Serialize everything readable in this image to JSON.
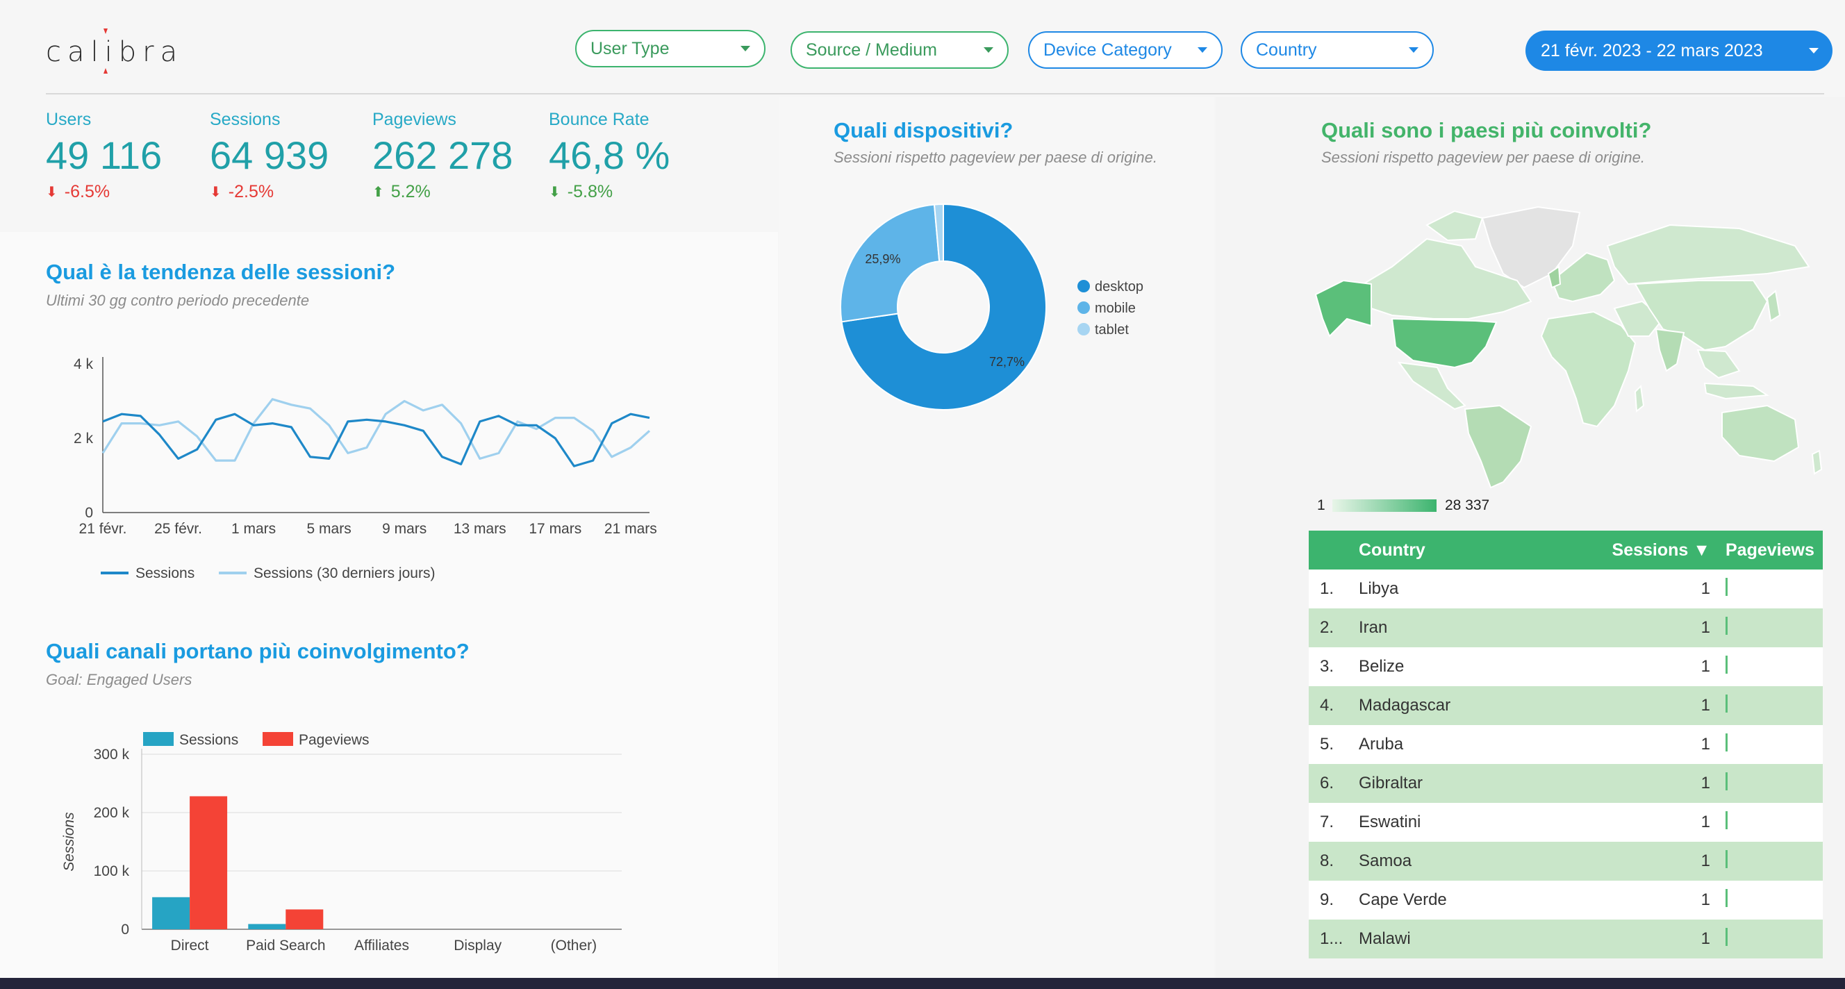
{
  "header": {
    "logo_text": "calibra",
    "filters": [
      {
        "label": "User Type"
      },
      {
        "label": "Source / Medium"
      },
      {
        "label": "Device Category"
      },
      {
        "label": "Country"
      }
    ],
    "date_range": "21 févr. 2023 - 22 mars 2023"
  },
  "kpis": [
    {
      "label": "Users",
      "value": "49 116",
      "delta": "-6.5%",
      "direction": "down"
    },
    {
      "label": "Sessions",
      "value": "64 939",
      "delta": "-2.5%",
      "direction": "down"
    },
    {
      "label": "Pageviews",
      "value": "262 278",
      "delta": "5.2%",
      "direction": "up"
    },
    {
      "label": "Bounce Rate",
      "value": "46,8 %",
      "delta": "-5.8%",
      "direction": "down_good"
    }
  ],
  "trend": {
    "title": "Qual è la tendenza delle sessioni?",
    "subtitle": "Ultimi 30 gg contro periodo precedente"
  },
  "channels": {
    "title": "Quali canali portano più coinvolgimento?",
    "subtitle": "Goal: Engaged Users"
  },
  "devices": {
    "title": "Quali dispositivi?",
    "subtitle": "Sessioni rispetto pageview per paese di origine."
  },
  "countries": {
    "title": "Quali sono i paesi più coinvolti?",
    "subtitle": "Sessioni rispetto pageview per paese di origine.",
    "scale_min": "1",
    "scale_max": "28 337",
    "table": {
      "headers": {
        "country": "Country",
        "sessions": "Sessions ▼",
        "pageviews": "Pageviews"
      },
      "rows": [
        {
          "idx": "1.",
          "country": "Libya",
          "sessions": "1"
        },
        {
          "idx": "2.",
          "country": "Iran",
          "sessions": "1"
        },
        {
          "idx": "3.",
          "country": "Belize",
          "sessions": "1"
        },
        {
          "idx": "4.",
          "country": "Madagascar",
          "sessions": "1"
        },
        {
          "idx": "5.",
          "country": "Aruba",
          "sessions": "1"
        },
        {
          "idx": "6.",
          "country": "Gibraltar",
          "sessions": "1"
        },
        {
          "idx": "7.",
          "country": "Eswatini",
          "sessions": "1"
        },
        {
          "idx": "8.",
          "country": "Samoa",
          "sessions": "1"
        },
        {
          "idx": "9.",
          "country": "Cape Verde",
          "sessions": "1"
        },
        {
          "idx": "1...",
          "country": "Malawi",
          "sessions": "1"
        }
      ]
    }
  },
  "colors": {
    "accent_blue": "#1e88e5",
    "accent_green": "#3cb46e",
    "series_dark": "#1e88c8",
    "series_light": "#9fd0ee",
    "sessions_bar": "#26a4c4",
    "pageviews_bar": "#f44336"
  },
  "chart_data": [
    {
      "type": "line",
      "x": [
        "21 févr.",
        "22 févr.",
        "23 févr.",
        "24 févr.",
        "25 févr.",
        "26 févr.",
        "27 févr.",
        "28 févr.",
        "1 mars",
        "2 mars",
        "3 mars",
        "4 mars",
        "5 mars",
        "6 mars",
        "7 mars",
        "8 mars",
        "9 mars",
        "10 mars",
        "11 mars",
        "12 mars",
        "13 mars",
        "14 mars",
        "15 mars",
        "16 mars",
        "17 mars",
        "18 mars",
        "19 mars",
        "20 mars",
        "21 mars",
        "22 mars"
      ],
      "xticks": [
        "21 févr.",
        "25 févr.",
        "1 mars",
        "5 mars",
        "9 mars",
        "13 mars",
        "17 mars",
        "21 mars"
      ],
      "yticks": [
        "0",
        "2 k",
        "4 k"
      ],
      "ylim": [
        0,
        4000
      ],
      "series": [
        {
          "name": "Sessions",
          "values": [
            2450,
            2650,
            2600,
            2100,
            1450,
            1700,
            2500,
            2650,
            2350,
            2400,
            2300,
            1500,
            1450,
            2450,
            2500,
            2450,
            2350,
            2200,
            1500,
            1300,
            2450,
            2600,
            2350,
            2350,
            2000,
            1250,
            1400,
            2400,
            2650,
            2550
          ]
        },
        {
          "name": "Sessions (30 derniers jours)",
          "values": [
            1600,
            2400,
            2400,
            2350,
            2450,
            2050,
            1400,
            1400,
            2400,
            3050,
            2900,
            2800,
            2350,
            1600,
            1750,
            2650,
            3000,
            2750,
            2900,
            2400,
            1450,
            1600,
            2450,
            2250,
            2550,
            2550,
            2200,
            1500,
            1750,
            2200
          ]
        }
      ],
      "title": "Qual è la tendenza delle sessioni?",
      "legend": "bottom"
    },
    {
      "type": "bar",
      "categories": [
        "Direct",
        "Paid Search",
        "Affiliates",
        "Display",
        "(Other)"
      ],
      "series": [
        {
          "name": "Sessions",
          "values": [
            55000,
            9000,
            0,
            0,
            0
          ]
        },
        {
          "name": "Pageviews",
          "values": [
            228000,
            34000,
            0,
            0,
            0
          ]
        }
      ],
      "ylabel": "Sessions",
      "yticks": [
        "0",
        "100 k",
        "200 k",
        "300 k"
      ],
      "ylim": [
        0,
        300000
      ],
      "legend": "top-left",
      "grid": true
    },
    {
      "type": "pie",
      "categories": [
        "desktop",
        "mobile",
        "tablet"
      ],
      "values": [
        72.7,
        25.9,
        1.4
      ],
      "data_labels": [
        "72,7%",
        "25,9%",
        ""
      ],
      "legend": "right",
      "donut": true
    }
  ]
}
